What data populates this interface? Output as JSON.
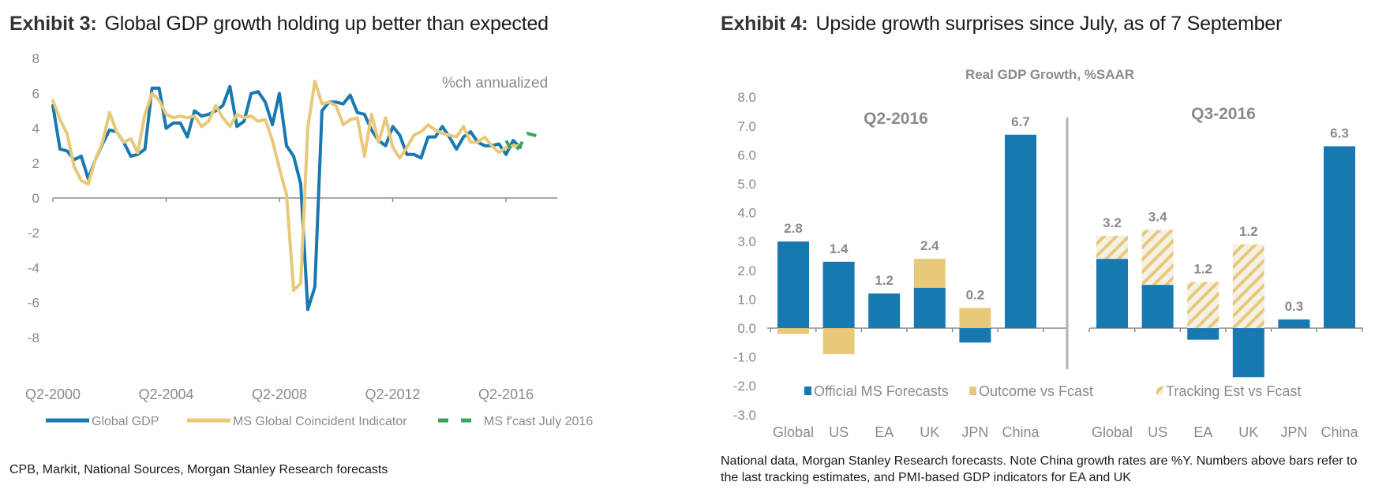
{
  "exhibit3": {
    "label": "Exhibit 3:",
    "title": "Global GDP growth holding up better than expected",
    "source": "CPB, Markit, National Sources, Morgan Stanley Research forecasts"
  },
  "exhibit4": {
    "label": "Exhibit 4:",
    "title": "Upside growth surprises since July, as of 7 September",
    "source": "National data, Morgan Stanley Research forecasts. Note China growth rates are %Y. Numbers above bars refer to the last tracking estimates, and PMI-based GDP indicators for EA and UK"
  },
  "colors": {
    "blue": "#1878b0",
    "gold": "#e8c97a",
    "green": "#3aa35a",
    "axis": "#8c8c8c",
    "text_grey": "#8a8a8a"
  },
  "chart_data": [
    {
      "type": "line",
      "title": "",
      "annotation": "%ch annualized",
      "xlabel": "",
      "ylabel": "",
      "ylim": [
        -8,
        8
      ],
      "yticks": [
        8,
        6,
        4,
        2,
        0,
        -2,
        -4,
        -6,
        -8
      ],
      "xtick_labels": [
        "Q2-2000",
        "Q2-2004",
        "Q2-2008",
        "Q2-2012",
        "Q2-2016"
      ],
      "x_start": "Q2-2000",
      "x_unit": "quarter",
      "legend_position": "bottom",
      "grid": false,
      "series": [
        {
          "name": "Global GDP",
          "style": "solid",
          "color": "#1878b0",
          "start_index": 0,
          "values": [
            5.3,
            2.8,
            2.7,
            2.2,
            2.4,
            1.1,
            2.2,
            3.1,
            3.9,
            3.8,
            3.2,
            2.4,
            2.5,
            2.8,
            6.3,
            6.3,
            4.0,
            4.3,
            4.3,
            3.5,
            5.0,
            4.7,
            4.8,
            5.0,
            5.3,
            6.4,
            4.1,
            4.4,
            6.0,
            6.1,
            5.5,
            4.2,
            6.0,
            3.0,
            2.4,
            0.8,
            -6.4,
            -5.1,
            5.0,
            5.5,
            5.5,
            5.4,
            5.9,
            4.9,
            4.8,
            3.9,
            3.3,
            3.0,
            4.1,
            3.6,
            2.5,
            2.5,
            2.3,
            3.5,
            3.5,
            4.1,
            3.5,
            2.8,
            3.5,
            3.8,
            3.2,
            3.0,
            3.0,
            3.1,
            2.5,
            3.3,
            2.9
          ]
        },
        {
          "name": "MS Global Coincident Indicator",
          "style": "solid",
          "color": "#e8c97a",
          "start_index": 0,
          "values": [
            5.6,
            4.5,
            3.7,
            1.8,
            1.0,
            0.8,
            2.2,
            3.2,
            4.9,
            3.8,
            3.2,
            3.4,
            2.6,
            4.8,
            6.0,
            5.6,
            4.8,
            4.6,
            4.7,
            4.6,
            4.7,
            4.1,
            4.4,
            5.3,
            4.6,
            4.1,
            4.8,
            4.6,
            4.7,
            4.4,
            4.5,
            3.3,
            1.7,
            0.2,
            -5.3,
            -4.9,
            4.0,
            6.7,
            5.4,
            5.5,
            5.3,
            4.2,
            4.5,
            4.6,
            2.4,
            4.8,
            3.2,
            4.6,
            2.9,
            2.3,
            2.9,
            3.6,
            3.8,
            4.2,
            3.9,
            3.7,
            3.6,
            3.5,
            4.1,
            3.2,
            3.2,
            3.5,
            3.0,
            2.6,
            2.9,
            3.0,
            3.0
          ]
        },
        {
          "name": "MS f'cast July 2016",
          "style": "dashed",
          "color": "#3aa35a",
          "start_index": 64,
          "values": [
            3.3,
            2.6,
            3.0,
            3.7,
            3.6,
            3.5
          ]
        }
      ]
    },
    {
      "type": "bar",
      "title": "Real GDP Growth, %SAAR",
      "xlabel": "",
      "ylabel": "",
      "ylim": [
        -3,
        8
      ],
      "yticks": [
        "8.0",
        "7.0",
        "6.0",
        "5.0",
        "4.0",
        "3.0",
        "2.0",
        "1.0",
        "0.0",
        "-1.0",
        "-2.0",
        "-3.0"
      ],
      "legend_position": "bottom",
      "grid": false,
      "stacked": true,
      "series_legend": [
        {
          "name": "Official MS Forecasts",
          "fill": "solid-blue"
        },
        {
          "name": "Outcome vs Fcast",
          "fill": "solid-gold"
        },
        {
          "name": "Tracking Est vs Fcast",
          "fill": "hatched-gold"
        }
      ],
      "groups": [
        {
          "label": "Q2-2016",
          "categories": [
            "Global",
            "US",
            "EA",
            "UK",
            "JPN",
            "China"
          ],
          "official_ms_forecast": [
            3.0,
            2.3,
            1.2,
            1.4,
            -0.5,
            6.7
          ],
          "outcome_vs_fcast": [
            -0.2,
            -0.9,
            0.0,
            1.0,
            0.7,
            0.0
          ],
          "tracking_est_vs_fcast": [
            0,
            0,
            0,
            0,
            0,
            0
          ],
          "labels_above": [
            "2.8",
            "1.4",
            "1.2",
            "2.4",
            "0.2",
            "6.7"
          ]
        },
        {
          "label": "Q3-2016",
          "categories": [
            "Global",
            "US",
            "EA",
            "UK",
            "JPN",
            "China"
          ],
          "official_ms_forecast": [
            2.4,
            1.5,
            -0.4,
            -1.7,
            0.3,
            6.3
          ],
          "outcome_vs_fcast": [
            0,
            0,
            0,
            0,
            0,
            0
          ],
          "tracking_est_vs_fcast": [
            0.8,
            1.9,
            1.6,
            2.9,
            0.0,
            0.0
          ],
          "labels_above": [
            "3.2",
            "3.4",
            "1.2",
            "1.2",
            "0.3",
            "6.3"
          ]
        }
      ]
    }
  ]
}
